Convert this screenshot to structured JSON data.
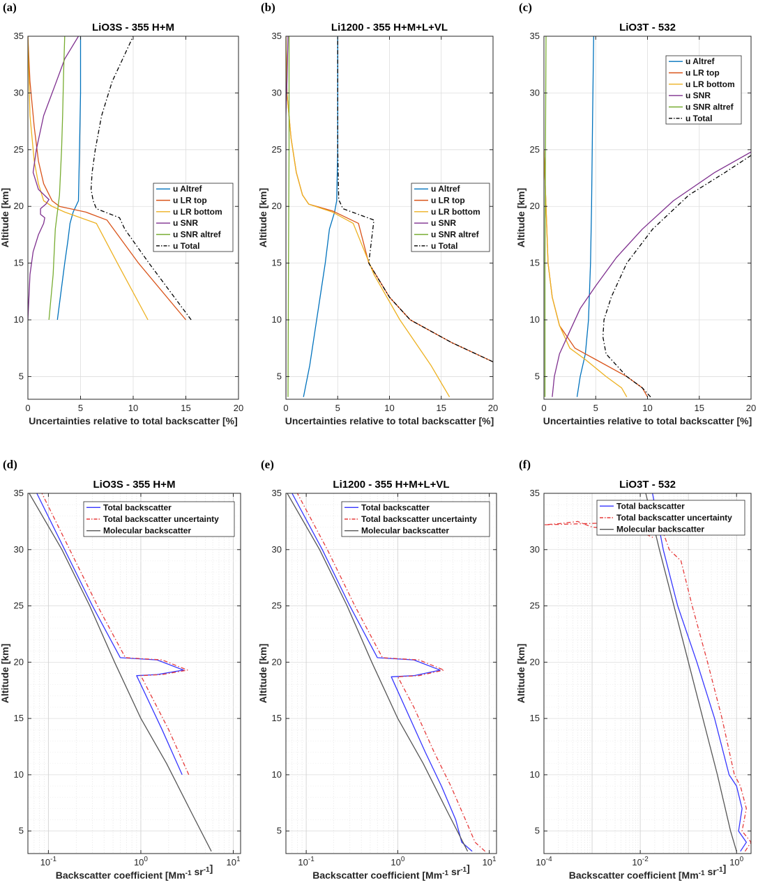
{
  "figure": {
    "description": ""
  },
  "chart_data": [
    {
      "panel": "(a)",
      "type": "line",
      "title": "LiO3S - 355 H+M",
      "xlabel": "Uncertainties relative to total backscatter [%]",
      "ylabel": "Altitude [km]",
      "xscale": "linear",
      "xlim": [
        0,
        20
      ],
      "ylim": [
        3,
        35
      ],
      "xticks": [
        0,
        5,
        10,
        15,
        20
      ],
      "xtick_labels": [
        "0",
        "5",
        "10",
        "15",
        "20"
      ],
      "yticks": [
        5,
        10,
        15,
        20,
        25,
        30,
        35
      ],
      "grid": true,
      "grid_minor": false,
      "legend_position": "right-middle",
      "series": [
        {
          "name": "u Altref",
          "color": "#0072bd",
          "dash": "solid",
          "x": [
            2.8,
            3.5,
            3.8,
            4.0,
            4.3,
            4.8,
            4.9,
            5.0,
            5.0
          ],
          "y": [
            10,
            15,
            17,
            18.5,
            19.5,
            20.5,
            25,
            30,
            35
          ]
        },
        {
          "name": "u LR top",
          "color": "#d95319",
          "dash": "solid",
          "x": [
            15.0,
            10.5,
            7.5,
            5.5,
            3.0,
            2.3,
            1.5,
            1.0,
            0.6,
            0.2,
            0.0
          ],
          "y": [
            10,
            15,
            18.8,
            19.5,
            20.0,
            20.5,
            22,
            24,
            27,
            31,
            35
          ]
        },
        {
          "name": "u LR bottom",
          "color": "#edb120",
          "dash": "solid",
          "x": [
            11.4,
            8.5,
            6.5,
            3.5,
            2.3,
            1.5,
            1.0,
            0.6,
            0.2,
            0.0
          ],
          "y": [
            10,
            15,
            18.5,
            19.5,
            20.0,
            20.5,
            22,
            24,
            28,
            35
          ]
        },
        {
          "name": "u SNR",
          "color": "#7e2f8e",
          "dash": "solid",
          "x": [
            0.0,
            0.1,
            0.2,
            0.5,
            1.0,
            1.5,
            1.6,
            1.2,
            1.2,
            1.7,
            2.0,
            1.0,
            0.5,
            0.8,
            1.5,
            2.5,
            3.5,
            4.8
          ],
          "y": [
            10,
            12,
            14,
            16,
            17.5,
            18.5,
            19.0,
            19.3,
            19.8,
            20.2,
            20.6,
            21.5,
            23,
            25,
            28,
            30.5,
            33,
            35
          ]
        },
        {
          "name": "u SNR altref",
          "color": "#77ac30",
          "dash": "solid",
          "x": [
            2.0,
            2.4,
            2.6,
            2.8,
            3.0,
            3.2,
            3.3,
            3.4,
            3.5
          ],
          "y": [
            10,
            14,
            18,
            19.5,
            21,
            25,
            28,
            32,
            35
          ]
        },
        {
          "name": "u Total",
          "color": "#000000",
          "dash": "dashdot",
          "x": [
            15.5,
            11.5,
            9.2,
            8.7,
            6.5,
            6.2,
            6.0,
            6.1,
            6.4,
            7.0,
            8.0,
            9.0,
            10.0
          ],
          "y": [
            10,
            15,
            18.0,
            19.0,
            19.8,
            20.5,
            21.5,
            23,
            25,
            28,
            31,
            33,
            35
          ]
        }
      ]
    },
    {
      "panel": "(b)",
      "type": "line",
      "title": "Li1200 - 355 H+M+L+VL",
      "xlabel": "Uncertainties relative to total backscatter [%]",
      "ylabel": "Altitude [km]",
      "xscale": "linear",
      "xlim": [
        0,
        20
      ],
      "ylim": [
        3,
        35
      ],
      "xticks": [
        0,
        5,
        10,
        15,
        20
      ],
      "xtick_labels": [
        "0",
        "5",
        "10",
        "15",
        "20"
      ],
      "yticks": [
        5,
        10,
        15,
        20,
        25,
        30,
        35
      ],
      "grid": true,
      "grid_minor": false,
      "legend_position": "right-middle",
      "series": [
        {
          "name": "u Altref",
          "color": "#0072bd",
          "dash": "solid",
          "x": [
            1.7,
            2.3,
            2.8,
            3.3,
            3.8,
            4.2,
            4.7,
            4.9,
            5.0,
            5.0
          ],
          "y": [
            3.2,
            6,
            9,
            12,
            15,
            18,
            19.5,
            20.5,
            25,
            35
          ]
        },
        {
          "name": "u LR top",
          "color": "#d95319",
          "dash": "solid",
          "x": [
            20.0,
            16.0,
            12.0,
            10.0,
            8.0,
            7.0,
            4.5,
            2.2,
            1.6,
            1.0,
            0.5,
            0.1,
            0.0
          ],
          "y": [
            6.3,
            8,
            10,
            12,
            15,
            18.5,
            19.6,
            20.2,
            21,
            23,
            26,
            30,
            35
          ]
        },
        {
          "name": "u LR bottom",
          "color": "#edb120",
          "dash": "solid",
          "x": [
            15.8,
            14.0,
            11.0,
            8.5,
            6.5,
            4.5,
            2.2,
            1.6,
            1.0,
            0.5,
            0.1,
            0.0
          ],
          "y": [
            3.2,
            6,
            10,
            14,
            18.5,
            19.5,
            20.2,
            21,
            23,
            26,
            30,
            35
          ]
        },
        {
          "name": "u SNR",
          "color": "#7e2f8e",
          "dash": "solid",
          "x": [
            0.0,
            0.0,
            0.0,
            0.1,
            0.2
          ],
          "y": [
            3.2,
            20,
            28,
            31,
            35
          ]
        },
        {
          "name": "u SNR altref",
          "color": "#77ac30",
          "dash": "solid",
          "x": [
            0.2,
            0.25,
            0.3,
            0.3
          ],
          "y": [
            3.2,
            15,
            25,
            35
          ]
        },
        {
          "name": "u Total",
          "color": "#000000",
          "dash": "dashdot",
          "x": [
            20.0,
            16.0,
            12.0,
            10.0,
            8.0,
            8.5,
            5.5,
            5.1,
            5.0,
            5.0
          ],
          "y": [
            6.3,
            8,
            10,
            12,
            15,
            18.8,
            19.8,
            20.6,
            25,
            35
          ]
        }
      ]
    },
    {
      "panel": "(c)",
      "type": "line",
      "title": "LiO3T - 532",
      "xlabel": "Uncertainties relative to total backscatter [%]",
      "ylabel": "Altitude [km]",
      "xscale": "linear",
      "xlim": [
        0,
        20
      ],
      "ylim": [
        3,
        35
      ],
      "xticks": [
        0,
        5,
        10,
        15,
        20
      ],
      "xtick_labels": [
        "0",
        "5",
        "10",
        "15",
        "20"
      ],
      "yticks": [
        5,
        10,
        15,
        20,
        25,
        30,
        35
      ],
      "grid": true,
      "grid_minor": false,
      "legend_position": "top-right",
      "series": [
        {
          "name": "u Altref",
          "color": "#0072bd",
          "dash": "solid",
          "x": [
            3.2,
            3.5,
            4.0,
            4.3,
            4.5,
            4.6,
            4.7,
            4.8
          ],
          "y": [
            3.2,
            5,
            7,
            10,
            15,
            20,
            28,
            35
          ]
        },
        {
          "name": "u LR top",
          "color": "#d95319",
          "dash": "solid",
          "x": [
            10.0,
            9.5,
            8.0,
            5.0,
            3.0,
            1.5,
            0.8,
            0.4,
            0.2,
            0.0
          ],
          "y": [
            3.2,
            4,
            5,
            6.5,
            7.5,
            9.5,
            12,
            15,
            20,
            25
          ]
        },
        {
          "name": "u LR bottom",
          "color": "#edb120",
          "dash": "solid",
          "x": [
            8.0,
            7.5,
            6.0,
            4.0,
            2.5,
            1.5,
            0.8,
            0.4,
            0.2,
            0.0
          ],
          "y": [
            3.2,
            4,
            5,
            6.5,
            7.5,
            9.5,
            12,
            15,
            20,
            25
          ]
        },
        {
          "name": "u SNR",
          "color": "#7e2f8e",
          "dash": "solid",
          "x": [
            0.8,
            1.0,
            1.5,
            2.5,
            3.5,
            5.0,
            7.0,
            9.5,
            12.5,
            16.5,
            20.0
          ],
          "y": [
            3.2,
            5,
            7,
            9,
            11,
            13,
            15.5,
            18,
            20.5,
            23,
            24.8
          ]
        },
        {
          "name": "u SNR altref",
          "color": "#77ac30",
          "dash": "solid",
          "x": [
            0.1,
            0.1,
            0.15,
            0.2
          ],
          "y": [
            3.2,
            15,
            25,
            35
          ]
        },
        {
          "name": "u Total",
          "color": "#000000",
          "dash": "dashdot",
          "x": [
            10.3,
            9.5,
            8.0,
            6.0,
            5.7,
            5.8,
            6.5,
            8.0,
            10.5,
            14.0,
            17.5,
            20.0
          ],
          "y": [
            3.2,
            4,
            5,
            7,
            8.5,
            10,
            12,
            15,
            18,
            21,
            23,
            24.5
          ]
        }
      ]
    },
    {
      "panel": "(d)",
      "type": "line",
      "title": "LiO3S - 355 H+M",
      "xlabel": "Backscatter coefficient [Mm-1 sr-1]",
      "ylabel": "Altitude [km]",
      "xscale": "log",
      "xlim": [
        0.06,
        12
      ],
      "ylim": [
        3,
        35
      ],
      "xticks": [
        0.1,
        1,
        10
      ],
      "xtick_labels": [
        "10-1",
        "100",
        "101"
      ],
      "yticks": [
        5,
        10,
        15,
        20,
        25,
        30,
        35
      ],
      "grid": true,
      "grid_minor": true,
      "legend_position": "top",
      "series": [
        {
          "name": "Total backscatter",
          "color": "#3535ff",
          "dash": "solid",
          "x": [
            2.8,
            1.7,
            0.9,
            1.5,
            2.9,
            1.5,
            0.6,
            0.3,
            0.15,
            0.075
          ],
          "y": [
            10,
            14,
            18.8,
            18.9,
            19.3,
            20.2,
            20.4,
            25,
            30,
            35
          ]
        },
        {
          "name": "Total backscatter uncertainty",
          "color": "#e63939",
          "dash": "dashdot",
          "x": [
            3.3,
            2.0,
            1.0,
            1.7,
            3.2,
            1.7,
            0.68,
            0.34,
            0.17,
            0.085
          ],
          "y": [
            10,
            14,
            18.8,
            18.9,
            19.3,
            20.2,
            20.4,
            25,
            30,
            35
          ]
        },
        {
          "name": "Molecular backscatter",
          "color": "#555555",
          "dash": "solid",
          "x": [
            5.8,
            3.6,
            1.9,
            1.0,
            0.52,
            0.28,
            0.14,
            0.062
          ],
          "y": [
            3.2,
            6.5,
            11,
            15,
            20,
            25,
            30,
            35
          ]
        }
      ]
    },
    {
      "panel": "(e)",
      "type": "line",
      "title": "Li1200 - 355 H+M+L+VL",
      "xlabel": "Backscatter coefficient [Mm-1 sr-1]",
      "ylabel": "Altitude [km]",
      "xscale": "log",
      "xlim": [
        0.06,
        12
      ],
      "ylim": [
        3,
        35
      ],
      "xticks": [
        0.1,
        1,
        10
      ],
      "xtick_labels": [
        "10-1",
        "100",
        "101"
      ],
      "yticks": [
        5,
        10,
        15,
        20,
        25,
        30,
        35
      ],
      "grid": true,
      "grid_minor": true,
      "legend_position": "top",
      "series": [
        {
          "name": "Total backscatter",
          "color": "#3535ff",
          "dash": "solid",
          "x": [
            6.5,
            5.0,
            4.3,
            3.0,
            2.0,
            1.2,
            0.85,
            1.5,
            2.9,
            1.5,
            0.6,
            0.3,
            0.15,
            0.07
          ],
          "y": [
            3.2,
            4,
            6,
            9,
            12,
            16,
            18.7,
            18.8,
            19.3,
            20.2,
            20.4,
            25,
            30,
            35
          ]
        },
        {
          "name": "Total backscatter uncertainty",
          "color": "#e63939",
          "dash": "dashdot",
          "x": [
            9.0,
            7.0,
            5.5,
            3.8,
            2.5,
            1.5,
            1.0,
            1.7,
            3.2,
            1.7,
            0.68,
            0.34,
            0.17,
            0.08
          ],
          "y": [
            3.2,
            4,
            6,
            9,
            12,
            16,
            18.7,
            18.8,
            19.3,
            20.2,
            20.4,
            25,
            30,
            35
          ]
        },
        {
          "name": "Molecular backscatter",
          "color": "#555555",
          "dash": "solid",
          "x": [
            5.8,
            3.6,
            1.9,
            1.0,
            0.52,
            0.28,
            0.14,
            0.062
          ],
          "y": [
            3.2,
            6.5,
            11,
            15,
            20,
            25,
            30,
            35
          ]
        }
      ]
    },
    {
      "panel": "(f)",
      "type": "line",
      "title": "LiO3T - 532",
      "xlabel": "Backscatter coefficient [Mm-1 sr-1]",
      "ylabel": "Altitude [km]",
      "xscale": "log",
      "xlim": [
        0.0001,
        2
      ],
      "ylim": [
        3,
        35
      ],
      "xticks": [
        0.0001,
        0.01,
        1
      ],
      "xtick_labels": [
        "10-4",
        "10-2",
        "100"
      ],
      "yticks": [
        5,
        10,
        15,
        20,
        25,
        30,
        35
      ],
      "grid": true,
      "grid_minor": true,
      "legend_position": "top",
      "series": [
        {
          "name": "Total backscatter",
          "color": "#3535ff",
          "dash": "solid",
          "x": [
            1.2,
            1.6,
            1.1,
            1.3,
            1.0,
            0.7,
            0.35,
            0.15,
            0.06,
            0.03,
            0.018
          ],
          "y": [
            3.2,
            4,
            5,
            7,
            9,
            10,
            15,
            20,
            25,
            30,
            35
          ]
        },
        {
          "name": "Total backscatter uncertainty",
          "color": "#e63939",
          "dash": "dashdot",
          "x": [
            1.5,
            2.0,
            1.3,
            1.6,
            1.2,
            0.9,
            0.5,
            0.25,
            0.12,
            0.07,
            0.04,
            0.03,
            0.001,
            0.0005,
            0.0002,
            0.0001,
            0.004,
            0.02
          ],
          "y": [
            3.2,
            4,
            5,
            7,
            9,
            10,
            15,
            20,
            25,
            29,
            30,
            31.5,
            32,
            32.5,
            32.3,
            32.2,
            32.4,
            31
          ]
        },
        {
          "name": "Molecular backscatter",
          "color": "#555555",
          "dash": "solid",
          "x": [
            1.0,
            0.75,
            0.4,
            0.2,
            0.1,
            0.05,
            0.025,
            0.013
          ],
          "y": [
            3.2,
            5,
            10,
            15,
            20,
            25,
            30,
            35
          ]
        }
      ]
    }
  ]
}
